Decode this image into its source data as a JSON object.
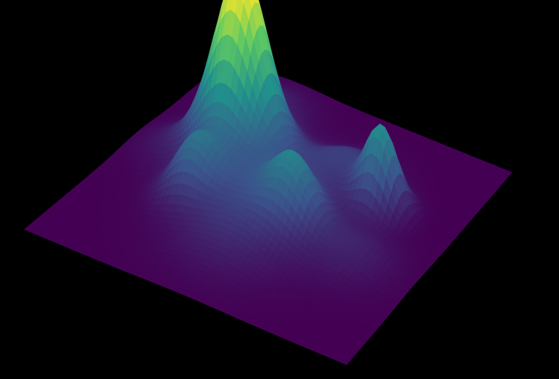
{
  "chart_data": {
    "type": "surface",
    "title": "",
    "xlabel": "",
    "ylabel": "",
    "zlabel": "",
    "colormap": "viridis",
    "colormap_stops": [
      "#440154",
      "#3b528b",
      "#21918c",
      "#5ec962",
      "#fde725"
    ],
    "background": "#000000",
    "axes_visible": false,
    "grid": false,
    "legend": "none",
    "x_range": [
      0,
      1
    ],
    "y_range": [
      0,
      1
    ],
    "z_range": [
      0,
      1
    ],
    "peaks": [
      {
        "x": 0.3,
        "y": 0.38,
        "height": 1.0,
        "width": 0.075
      },
      {
        "x": 0.76,
        "y": 0.36,
        "height": 0.45,
        "width": 0.05
      },
      {
        "x": 0.3,
        "y": 0.62,
        "height": 0.28,
        "width": 0.06
      },
      {
        "x": 0.6,
        "y": 0.58,
        "height": 0.28,
        "width": 0.06
      },
      {
        "x": 0.46,
        "y": 0.5,
        "height": 0.22,
        "width": 0.14
      },
      {
        "x": 0.24,
        "y": 0.18,
        "height": 0.12,
        "width": 0.09
      },
      {
        "x": 0.62,
        "y": 0.3,
        "height": 0.14,
        "width": 0.08
      },
      {
        "x": 0.5,
        "y": 0.72,
        "height": 0.12,
        "width": 0.12
      },
      {
        "x": 0.8,
        "y": 0.6,
        "height": 0.1,
        "width": 0.09
      },
      {
        "x": 0.14,
        "y": 0.45,
        "height": 0.08,
        "width": 0.08
      }
    ]
  }
}
